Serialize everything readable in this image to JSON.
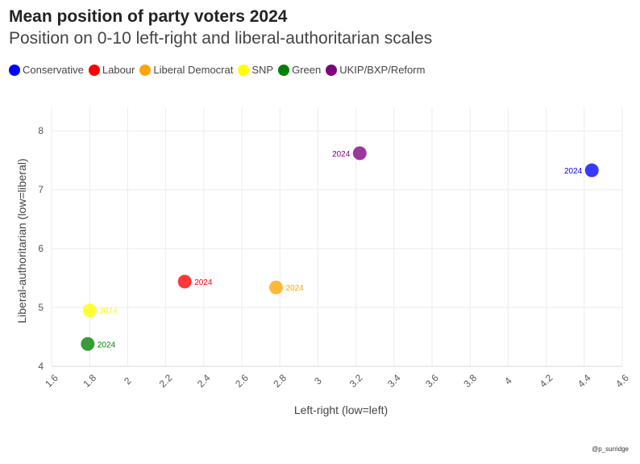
{
  "chart_data": {
    "type": "scatter",
    "title": "Mean position of party voters 2024",
    "subtitle": "Position on 0-10 left-right and liberal-authoritarian scales",
    "xlabel": "Left-right (low=left)",
    "ylabel": "Liberal-authoritarian (low=liberal)",
    "xlim": [
      1.6,
      4.6
    ],
    "ylim": [
      4,
      8.4
    ],
    "x_ticks": [
      "1.6",
      "1.8",
      "2",
      "2.2",
      "2.4",
      "2.6",
      "2.8",
      "3",
      "3.2",
      "3.4",
      "3.6",
      "3.8",
      "4",
      "4.2",
      "4.4",
      "4.6"
    ],
    "y_ticks": [
      "4",
      "5",
      "6",
      "7",
      "8"
    ],
    "grid": true,
    "legend_position": "top-left",
    "series": [
      {
        "name": "Conservative",
        "color": "#0000ff",
        "points": [
          {
            "x": 4.44,
            "y": 7.33,
            "label": "2024",
            "label_side": "left"
          }
        ]
      },
      {
        "name": "Labour",
        "color": "#ff0000",
        "points": [
          {
            "x": 2.3,
            "y": 5.44,
            "label": "2024",
            "label_side": "right"
          }
        ]
      },
      {
        "name": "Liberal Democrat",
        "color": "#ffa500",
        "points": [
          {
            "x": 2.78,
            "y": 5.34,
            "label": "2024",
            "label_side": "right"
          }
        ]
      },
      {
        "name": "SNP",
        "color": "#ffff00",
        "points": [
          {
            "x": 1.8,
            "y": 4.95,
            "label": "2024",
            "label_side": "right"
          }
        ]
      },
      {
        "name": "Green",
        "color": "#008000",
        "points": [
          {
            "x": 1.79,
            "y": 4.38,
            "label": "2024",
            "label_side": "right"
          }
        ]
      },
      {
        "name": "UKIP/BXP/Reform",
        "color": "#800080",
        "points": [
          {
            "x": 3.22,
            "y": 7.62,
            "label": "2024",
            "label_side": "left"
          }
        ]
      }
    ],
    "credit": "@p_surridge"
  }
}
